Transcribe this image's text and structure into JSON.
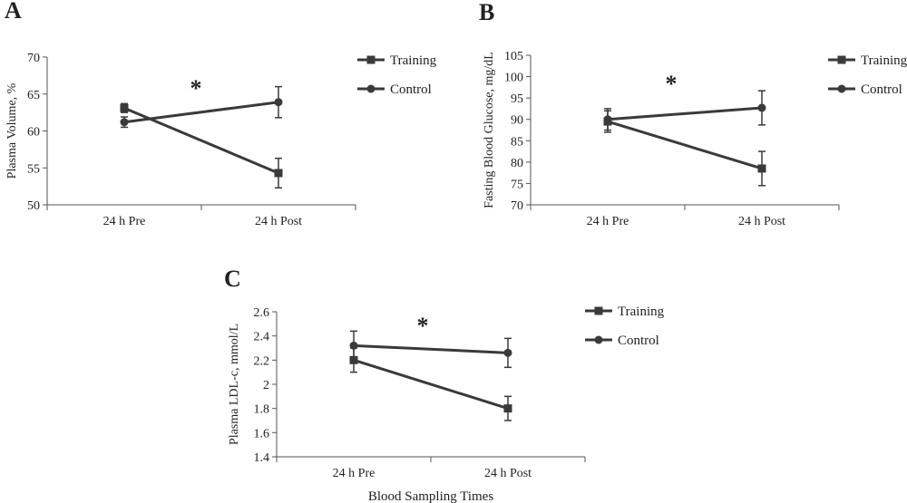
{
  "chart_data": [
    {
      "panel": "A",
      "type": "line",
      "categories": [
        "24 h Pre",
        "24 h Post"
      ],
      "ylabel": "Plasma Volume, %",
      "ylim": [
        50,
        70
      ],
      "yticks": [
        50,
        55,
        60,
        65,
        70
      ],
      "annotation": "*",
      "series": [
        {
          "name": "Training",
          "marker": "square",
          "values": [
            63.1,
            54.3
          ],
          "error": [
            0.6,
            2.0
          ]
        },
        {
          "name": "Control",
          "marker": "circle",
          "values": [
            61.2,
            63.9
          ],
          "error": [
            0.7,
            2.1
          ]
        }
      ]
    },
    {
      "panel": "B",
      "type": "line",
      "categories": [
        "24 h Pre",
        "24 h Post"
      ],
      "ylabel": "Fasting Blood Glucose, mg/dL",
      "ylim": [
        70,
        105
      ],
      "yticks": [
        70,
        75,
        80,
        85,
        90,
        95,
        100,
        105
      ],
      "annotation": "*",
      "series": [
        {
          "name": "Training",
          "marker": "square",
          "values": [
            89.5,
            78.5
          ],
          "error": [
            2.5,
            4.0
          ]
        },
        {
          "name": "Control",
          "marker": "circle",
          "values": [
            90.0,
            92.7
          ],
          "error": [
            2.5,
            4.0
          ]
        }
      ]
    },
    {
      "panel": "C",
      "type": "line",
      "categories": [
        "24 h Pre",
        "24 h Post"
      ],
      "xlabel": "Blood Sampling Times",
      "ylabel": "Plasma LDL-c, mmol/L",
      "ylim": [
        1.4,
        2.6
      ],
      "yticks": [
        "1.4",
        "1.6",
        "1.8",
        "2",
        "2.2",
        "2.4",
        "2.6"
      ],
      "annotation": "*",
      "series": [
        {
          "name": "Training",
          "marker": "square",
          "values": [
            2.2,
            1.8
          ],
          "error": [
            0.1,
            0.1
          ]
        },
        {
          "name": "Control",
          "marker": "circle",
          "values": [
            2.32,
            2.26
          ],
          "error": [
            0.12,
            0.12
          ]
        }
      ]
    }
  ],
  "colors": {
    "line": "#3a3a3a",
    "axis": "#555555",
    "text": "#222222"
  }
}
